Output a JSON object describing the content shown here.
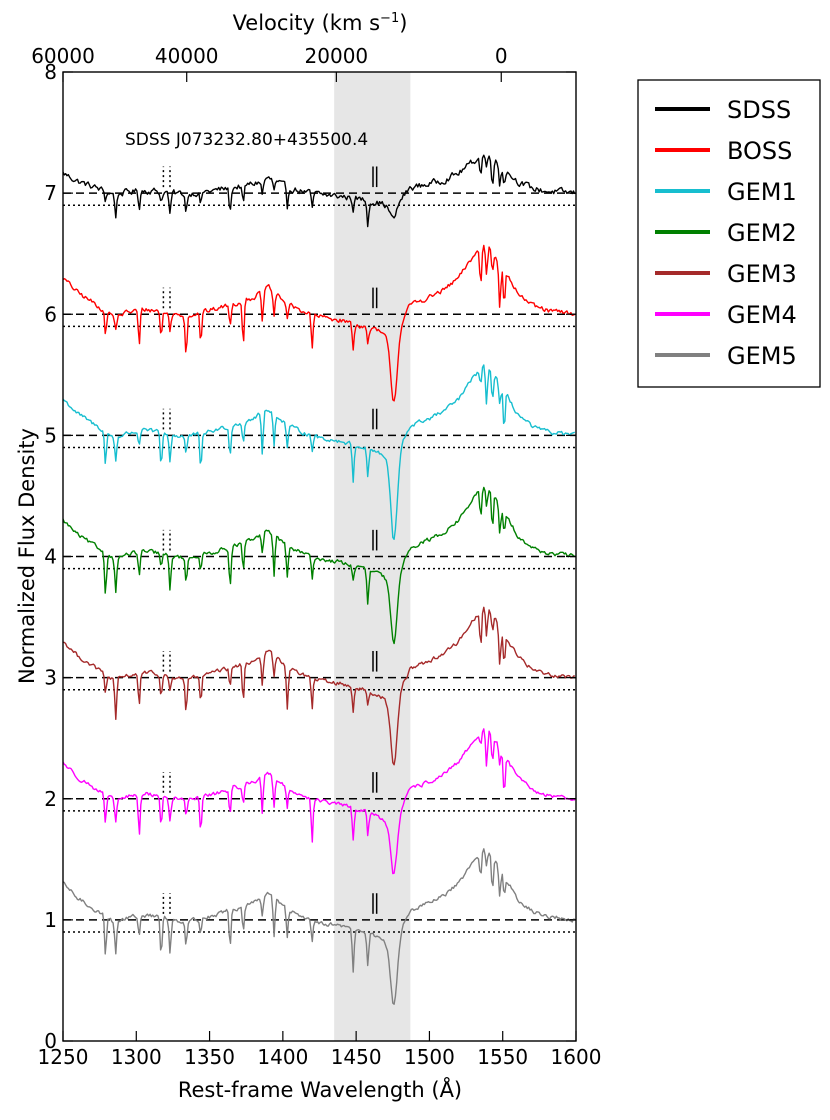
{
  "chart_data": {
    "type": "line",
    "title": "",
    "annotation": "SDSS J073232.80+435500.4",
    "xlabel": "Rest-frame Wavelength (Å)",
    "ylabel": "Normalized Flux Density",
    "top_xlabel": "Velocity (km s",
    "top_xlabel_exp": "−1",
    "top_xlabel_close": ")",
    "xlim": [
      1250,
      1600
    ],
    "ylim": [
      0,
      8
    ],
    "x_ticks": [
      1250,
      1300,
      1350,
      1400,
      1450,
      1500,
      1550,
      1600
    ],
    "y_ticks": [
      0,
      1,
      2,
      3,
      4,
      5,
      6,
      7,
      8
    ],
    "top_ticks": [
      {
        "label": "60000",
        "wavelength": 1250
      },
      {
        "label": "40000",
        "wavelength": 1334.4
      },
      {
        "label": "20000",
        "wavelength": 1436.5
      },
      {
        "label": "0",
        "wavelength": 1549
      }
    ],
    "shaded_band": [
      1435,
      1487
    ],
    "shaded_color": "#e6e6e6",
    "grid": false,
    "legend_position": "outside-right",
    "offsets_dashed": [
      7,
      6,
      5,
      4,
      3,
      2,
      1
    ],
    "offsets_dotted": [
      6.9,
      5.9,
      4.9,
      3.9,
      2.9,
      1.9,
      0.9
    ],
    "series": [
      {
        "name": "SDSS",
        "color": "#000000",
        "offset": 7,
        "scale": 0.55,
        "noise": 0.045,
        "trough": 0.2
      },
      {
        "name": "BOSS",
        "color": "#ff0000",
        "offset": 6,
        "scale": 1.0,
        "noise": 0.035,
        "trough": 0.45
      },
      {
        "name": "GEM1",
        "color": "#17becf",
        "offset": 5,
        "scale": 1.0,
        "noise": 0.03,
        "trough": 0.6
      },
      {
        "name": "GEM2",
        "color": "#008000",
        "offset": 4,
        "scale": 1.0,
        "noise": 0.03,
        "trough": 0.45
      },
      {
        "name": "GEM3",
        "color": "#a52a2a",
        "offset": 3,
        "scale": 1.0,
        "noise": 0.03,
        "trough": 0.45
      },
      {
        "name": "GEM4",
        "color": "#ff00ff",
        "offset": 2,
        "scale": 1.0,
        "noise": 0.03,
        "trough": 0.35
      },
      {
        "name": "GEM5",
        "color": "#808080",
        "offset": 1,
        "scale": 1.0,
        "noise": 0.03,
        "trough": 0.45
      }
    ],
    "profile": [
      [
        1250,
        0.3
      ],
      [
        1260,
        0.18
      ],
      [
        1270,
        0.1
      ],
      [
        1285,
        -0.02
      ],
      [
        1295,
        0.02
      ],
      [
        1305,
        0.04
      ],
      [
        1315,
        0.03
      ],
      [
        1325,
        0.0
      ],
      [
        1335,
        -0.01
      ],
      [
        1350,
        0.03
      ],
      [
        1365,
        0.08
      ],
      [
        1380,
        0.14
      ],
      [
        1390,
        0.22
      ],
      [
        1398,
        0.14
      ],
      [
        1405,
        0.07
      ],
      [
        1415,
        0.02
      ],
      [
        1425,
        -0.02
      ],
      [
        1440,
        -0.05
      ],
      [
        1455,
        -0.1
      ],
      [
        1465,
        -0.14
      ],
      [
        1470,
        -0.18
      ],
      [
        1475,
        -0.3
      ],
      [
        1480,
        -0.1
      ],
      [
        1487,
        0.08
      ],
      [
        1500,
        0.14
      ],
      [
        1510,
        0.2
      ],
      [
        1520,
        0.3
      ],
      [
        1530,
        0.48
      ],
      [
        1537,
        0.58
      ],
      [
        1542,
        0.55
      ],
      [
        1550,
        0.38
      ],
      [
        1560,
        0.18
      ],
      [
        1570,
        0.07
      ],
      [
        1580,
        0.03
      ],
      [
        1600,
        0.0
      ]
    ],
    "absorption_lines": [
      1279,
      1286,
      1302,
      1317,
      1323,
      1334,
      1344,
      1364,
      1373,
      1386,
      1394,
      1403,
      1420,
      1448,
      1458,
      1535,
      1539,
      1543,
      1548,
      1551
    ],
    "doublet_marks": {
      "dotted_pairs": [
        [
          1318.5,
          1323
        ]
      ],
      "solid_pairs": [
        [
          1461.5,
          1464
        ]
      ]
    }
  }
}
